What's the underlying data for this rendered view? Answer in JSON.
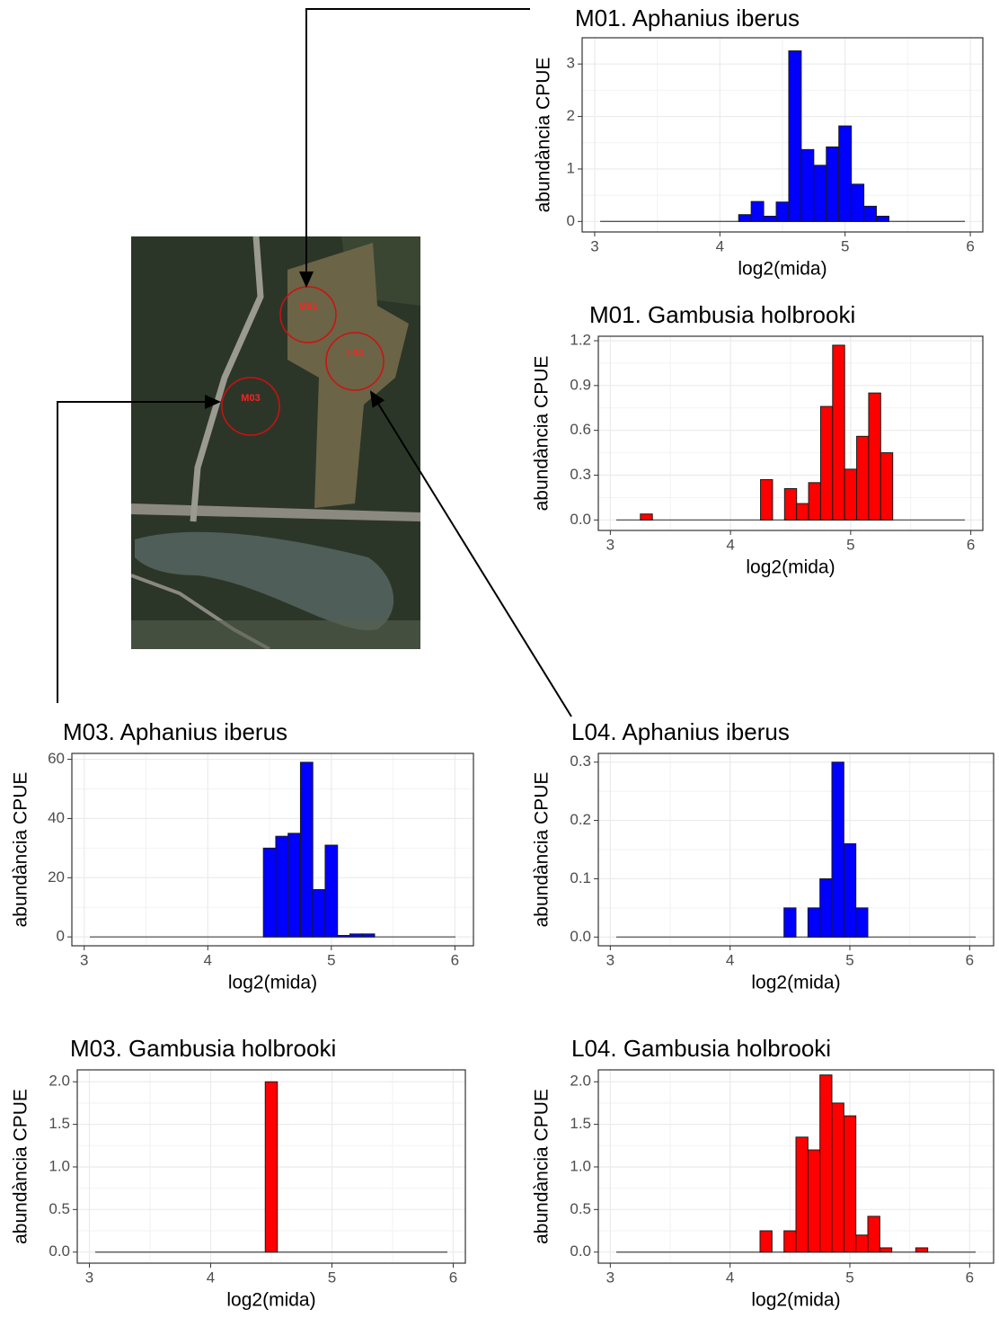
{
  "chart_data": [
    {
      "type": "histogram",
      "title": "M01. Aphanius iberus",
      "x_label": "log2(mida)",
      "y_label": "abundància CPUE",
      "color": "#0000ff",
      "bins": [
        4.15,
        4.25,
        4.35,
        4.45,
        4.55,
        4.65,
        4.75,
        4.85,
        4.95,
        5.05,
        5.15,
        5.25,
        5.35
      ],
      "values": [
        0.13,
        0.38,
        0.1,
        0.37,
        3.25,
        1.37,
        1.07,
        1.42,
        1.82,
        0.71,
        0.29,
        0.1
      ],
      "xlim": [
        2.9,
        6.1
      ],
      "xticks": [
        3,
        4,
        5,
        6
      ],
      "ylim": [
        -0.2,
        3.5
      ],
      "yticks": [
        0,
        1,
        2,
        3
      ],
      "grid": true
    },
    {
      "type": "histogram",
      "title": "M01. Gambusia holbrooki",
      "x_label": "log2(mida)",
      "y_label": "abundància CPUE",
      "color": "#ff0000",
      "bins": [
        3.25,
        3.35,
        3.45,
        3.55,
        3.65,
        3.75,
        3.85,
        3.95,
        4.05,
        4.15,
        4.25,
        4.35,
        4.45,
        4.55,
        4.65,
        4.75,
        4.85,
        4.95,
        5.05,
        5.15,
        5.25,
        5.35
      ],
      "values": [
        0.04,
        0,
        0,
        0,
        0,
        0,
        0,
        0,
        0,
        0,
        0.27,
        0,
        0.21,
        0.11,
        0.25,
        0.76,
        1.17,
        0.34,
        0.56,
        0.85,
        0.45
      ],
      "xlim": [
        2.9,
        6.1
      ],
      "xticks": [
        3,
        4,
        5,
        6
      ],
      "ylim": [
        -0.07,
        1.23
      ],
      "yticks": [
        {
          "value": 0,
          "label": "0.0"
        },
        0.3,
        0.6,
        0.9,
        1.2
      ],
      "grid": true
    },
    {
      "type": "histogram",
      "title": "M03. Aphanius iberus",
      "x_label": "log2(mida)",
      "y_label": "abundància CPUE",
      "color": "#0000ff",
      "bins": [
        4.45,
        4.55,
        4.65,
        4.75,
        4.85,
        4.95,
        5.05,
        5.15,
        5.25,
        5.35
      ],
      "values": [
        30,
        34,
        35,
        59,
        16,
        31,
        0.5,
        1,
        1
      ],
      "xlim": [
        2.9,
        6.15
      ],
      "xticks": [
        3,
        4,
        5,
        6
      ],
      "ylim": [
        -3,
        62
      ],
      "yticks": [
        0,
        20,
        40,
        60
      ],
      "grid": true
    },
    {
      "type": "histogram",
      "title": "L04. Aphanius iberus",
      "x_label": "log2(mida)",
      "y_label": "abundància CPUE",
      "color": "#0000ff",
      "bins": [
        4.45,
        4.55,
        4.65,
        4.75,
        4.85,
        4.95,
        5.05,
        5.15
      ],
      "values": [
        0.05,
        0,
        0.05,
        0.1,
        0.3,
        0.16,
        0.05
      ],
      "xlim": [
        2.9,
        6.2
      ],
      "xticks": [
        3,
        4,
        5,
        6
      ],
      "ylim": [
        -0.015,
        0.315
      ],
      "yticks": [
        {
          "value": 0,
          "label": "0.0"
        },
        0.1,
        0.2,
        0.3
      ],
      "grid": true
    },
    {
      "type": "histogram",
      "title": "M03. Gambusia holbrooki",
      "x_label": "log2(mida)",
      "y_label": "abundància CPUE",
      "color": "#ff0000",
      "bins": [
        4.45,
        4.55
      ],
      "values": [
        2.0
      ],
      "xlim": [
        2.9,
        6.1
      ],
      "xticks": [
        3,
        4,
        5,
        6
      ],
      "ylim": [
        -0.13,
        2.14
      ],
      "yticks": [
        {
          "value": 0,
          "label": "0.0"
        },
        0.5,
        {
          "value": 1,
          "label": "1.0"
        },
        1.5,
        {
          "value": 2,
          "label": "2.0"
        }
      ],
      "grid": true
    },
    {
      "type": "histogram",
      "title": "L04. Gambusia holbrooki",
      "x_label": "log2(mida)",
      "y_label": "abundància CPUE",
      "color": "#ff0000",
      "bins": [
        4.25,
        4.35,
        4.45,
        4.55,
        4.65,
        4.75,
        4.85,
        4.95,
        5.05,
        5.15,
        5.25,
        5.35,
        5.45,
        5.55,
        5.65
      ],
      "values": [
        0.25,
        0,
        0.25,
        1.35,
        1.2,
        2.08,
        1.75,
        1.6,
        0.2,
        0.42,
        0.05,
        0,
        0,
        0.05
      ],
      "xlim": [
        2.9,
        6.2
      ],
      "xticks": [
        3,
        4,
        5,
        6
      ],
      "ylim": [
        -0.13,
        2.14
      ],
      "yticks": [
        {
          "value": 0,
          "label": "0.0"
        },
        0.5,
        {
          "value": 1,
          "label": "1.0"
        },
        1.5,
        {
          "value": 2,
          "label": "2.0"
        }
      ],
      "grid": true
    }
  ],
  "map": {
    "labels": [
      "M01",
      "L04",
      "M03"
    ]
  }
}
